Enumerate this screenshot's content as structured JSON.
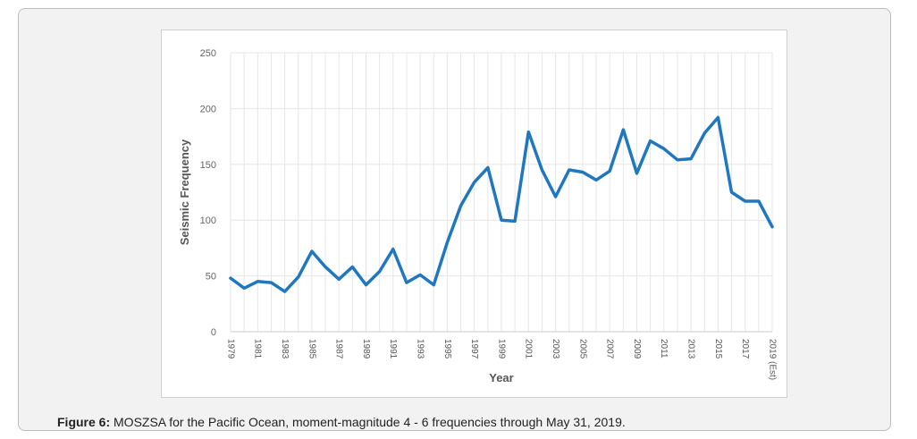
{
  "caption": {
    "label": "Figure 6:",
    "text": " MOSZSA for the Pacific Ocean, moment-magnitude 4 - 6 frequencies through May 31, 2019."
  },
  "chart_data": {
    "type": "line",
    "title": "",
    "xlabel": "Year",
    "ylabel": "Seismic Frequency",
    "ylim": [
      0,
      250
    ],
    "yticks": [
      0,
      50,
      100,
      150,
      200,
      250
    ],
    "grid": true,
    "line_color": "#1f77c0",
    "categories": [
      "1979",
      "1980",
      "1981",
      "1982",
      "1983",
      "1984",
      "1985",
      "1986",
      "1987",
      "1988",
      "1989",
      "1990",
      "1991",
      "1992",
      "1993",
      "1994",
      "1995",
      "1996",
      "1997",
      "1998",
      "1999",
      "2000",
      "2001",
      "2002",
      "2003",
      "2004",
      "2005",
      "2006",
      "2007",
      "2008",
      "2009",
      "2010",
      "2011",
      "2012",
      "2013",
      "2014",
      "2015",
      "2016",
      "2017",
      "2018",
      "2019 (Est)"
    ],
    "tick_labels": [
      "1979",
      "1981",
      "1983",
      "1985",
      "1987",
      "1989",
      "1991",
      "1993",
      "1995",
      "1997",
      "1999",
      "2001",
      "2003",
      "2005",
      "2007",
      "2009",
      "2011",
      "2013",
      "2015",
      "2017",
      "2019 (Est)"
    ],
    "series": [
      {
        "name": "Seismic Frequency",
        "values": [
          48,
          39,
          45,
          44,
          36,
          49,
          72,
          58,
          47,
          58,
          42,
          54,
          74,
          44,
          51,
          42,
          80,
          113,
          134,
          147,
          100,
          99,
          179,
          145,
          121,
          145,
          143,
          136,
          144,
          181,
          142,
          171,
          164,
          154,
          155,
          178,
          192,
          125,
          117,
          117,
          94
        ]
      }
    ]
  }
}
